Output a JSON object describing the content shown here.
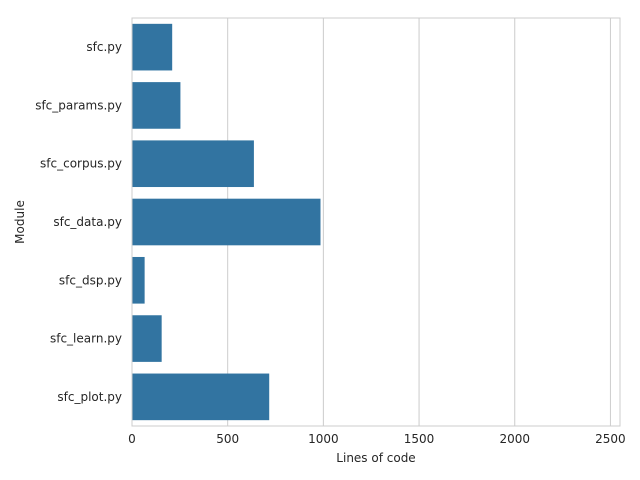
{
  "chart_data": {
    "type": "bar",
    "orientation": "horizontal",
    "title": "",
    "xlabel": "Lines of code",
    "ylabel": "Module",
    "categories": [
      "sfc.py",
      "sfc_params.py",
      "sfc_corpus.py",
      "sfc_data.py",
      "sfc_dsp.py",
      "sfc_learn.py",
      "sfc_plot.py"
    ],
    "values": [
      210,
      253,
      637,
      985,
      66,
      155,
      717
    ],
    "xlim": [
      0,
      2550
    ],
    "xticks": [
      0,
      500,
      1000,
      1500,
      2000,
      2500
    ],
    "grid": "vertical",
    "legend": "none",
    "bar_color": "#3274a1",
    "grid_color": "#cccccc",
    "text_color": "#262626"
  }
}
